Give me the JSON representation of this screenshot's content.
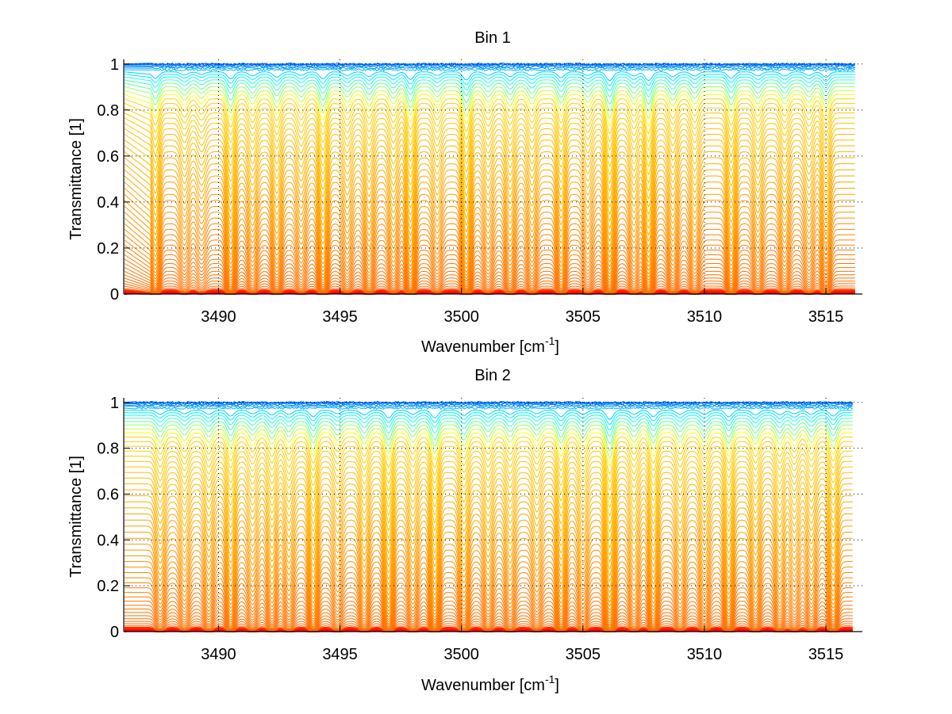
{
  "figure": {
    "colormap": [
      "#800000",
      "#ff0000",
      "#ff8000",
      "#ffff00",
      "#80ff80",
      "#00ffff",
      "#0080ff",
      "#0000ff"
    ],
    "grid_color": "#000000",
    "axis_color": "#000000"
  },
  "chart_data": [
    {
      "type": "line",
      "title": "Bin 1",
      "xlabel": "Wavenumber [cm",
      "xlabel_superscript": "-1",
      "xlabel_suffix": "]",
      "ylabel": "Transmittance [1]",
      "xlim": [
        3486.1,
        3516.5
      ],
      "ylim": [
        0,
        1.02
      ],
      "xticks": [
        3490,
        3495,
        3500,
        3505,
        3510,
        3515
      ],
      "xtick_labels": [
        "3490",
        "3495",
        "3500",
        "3505",
        "3510",
        "3515"
      ],
      "yticks": [
        0,
        0.2,
        0.4,
        0.6,
        0.8,
        1
      ],
      "ytick_labels": [
        "0",
        "0.2",
        "0.4",
        "0.6",
        "0.8",
        "1"
      ],
      "grid": true,
      "x_range": [
        3487.2,
        3516.2
      ],
      "series_count": 60,
      "series_baseline_range": [
        0.0,
        1.0
      ],
      "absorption_lines": [
        {
          "center": 3487.4,
          "depth": 0.55,
          "width": 0.14
        },
        {
          "center": 3488.6,
          "depth": 0.25,
          "width": 0.15
        },
        {
          "center": 3489.3,
          "depth": 0.2,
          "width": 0.15
        },
        {
          "center": 3490.5,
          "depth": 0.6,
          "width": 0.14
        },
        {
          "center": 3491.4,
          "depth": 0.35,
          "width": 0.15
        },
        {
          "center": 3492.4,
          "depth": 0.45,
          "width": 0.15
        },
        {
          "center": 3493.4,
          "depth": 0.3,
          "width": 0.15
        },
        {
          "center": 3494.3,
          "depth": 0.6,
          "width": 0.14
        },
        {
          "center": 3495.3,
          "depth": 0.3,
          "width": 0.15
        },
        {
          "center": 3496.2,
          "depth": 0.4,
          "width": 0.15
        },
        {
          "center": 3497.2,
          "depth": 0.35,
          "width": 0.15
        },
        {
          "center": 3497.9,
          "depth": 0.65,
          "width": 0.14
        },
        {
          "center": 3499.0,
          "depth": 0.3,
          "width": 0.15
        },
        {
          "center": 3500.2,
          "depth": 0.7,
          "width": 0.14
        },
        {
          "center": 3501.1,
          "depth": 0.3,
          "width": 0.15
        },
        {
          "center": 3502.0,
          "depth": 0.4,
          "width": 0.15
        },
        {
          "center": 3502.9,
          "depth": 0.35,
          "width": 0.15
        },
        {
          "center": 3504.1,
          "depth": 0.5,
          "width": 0.14
        },
        {
          "center": 3505.2,
          "depth": 0.3,
          "width": 0.15
        },
        {
          "center": 3506.1,
          "depth": 0.75,
          "width": 0.14
        },
        {
          "center": 3507.1,
          "depth": 0.35,
          "width": 0.15
        },
        {
          "center": 3507.7,
          "depth": 0.75,
          "width": 0.14
        },
        {
          "center": 3508.7,
          "depth": 0.4,
          "width": 0.15
        },
        {
          "center": 3509.6,
          "depth": 0.35,
          "width": 0.15
        },
        {
          "center": 3511.1,
          "depth": 0.55,
          "width": 0.14
        },
        {
          "center": 3512.2,
          "depth": 0.35,
          "width": 0.15
        },
        {
          "center": 3513.3,
          "depth": 0.35,
          "width": 0.15
        },
        {
          "center": 3514.3,
          "depth": 0.3,
          "width": 0.15
        },
        {
          "center": 3515.0,
          "depth": 0.45,
          "width": 0.14
        }
      ]
    },
    {
      "type": "line",
      "title": "Bin 2",
      "xlabel": "Wavenumber [cm",
      "xlabel_superscript": "-1",
      "xlabel_suffix": "]",
      "ylabel": "Transmittance [1]",
      "xlim": [
        3486.1,
        3516.5
      ],
      "ylim": [
        0,
        1.02
      ],
      "xticks": [
        3490,
        3495,
        3500,
        3505,
        3510,
        3515
      ],
      "xtick_labels": [
        "3490",
        "3495",
        "3500",
        "3505",
        "3510",
        "3515"
      ],
      "yticks": [
        0,
        0.2,
        0.4,
        0.6,
        0.8,
        1
      ],
      "ytick_labels": [
        "0",
        "0.2",
        "0.4",
        "0.6",
        "0.8",
        "1"
      ],
      "grid": true,
      "x_range": [
        3486.6,
        3516.1
      ],
      "series_count": 60,
      "series_baseline_range": [
        0.0,
        1.0
      ],
      "absorption_lines": [
        {
          "center": 3487.6,
          "depth": 0.35,
          "width": 0.15
        },
        {
          "center": 3488.6,
          "depth": 0.3,
          "width": 0.15
        },
        {
          "center": 3489.6,
          "depth": 0.35,
          "width": 0.15
        },
        {
          "center": 3490.5,
          "depth": 0.5,
          "width": 0.14
        },
        {
          "center": 3491.4,
          "depth": 0.3,
          "width": 0.15
        },
        {
          "center": 3492.2,
          "depth": 0.4,
          "width": 0.15
        },
        {
          "center": 3492.9,
          "depth": 0.35,
          "width": 0.15
        },
        {
          "center": 3493.9,
          "depth": 0.55,
          "width": 0.14
        },
        {
          "center": 3494.9,
          "depth": 0.3,
          "width": 0.15
        },
        {
          "center": 3496.0,
          "depth": 0.4,
          "width": 0.15
        },
        {
          "center": 3497.0,
          "depth": 0.65,
          "width": 0.14
        },
        {
          "center": 3498.0,
          "depth": 0.35,
          "width": 0.15
        },
        {
          "center": 3498.9,
          "depth": 0.65,
          "width": 0.14
        },
        {
          "center": 3500.1,
          "depth": 0.45,
          "width": 0.15
        },
        {
          "center": 3501.1,
          "depth": 0.35,
          "width": 0.15
        },
        {
          "center": 3502.0,
          "depth": 0.35,
          "width": 0.15
        },
        {
          "center": 3503.1,
          "depth": 0.3,
          "width": 0.15
        },
        {
          "center": 3504.1,
          "depth": 0.55,
          "width": 0.14
        },
        {
          "center": 3505.0,
          "depth": 0.35,
          "width": 0.15
        },
        {
          "center": 3506.1,
          "depth": 0.8,
          "width": 0.14
        },
        {
          "center": 3507.1,
          "depth": 0.35,
          "width": 0.15
        },
        {
          "center": 3507.9,
          "depth": 0.55,
          "width": 0.14
        },
        {
          "center": 3509.0,
          "depth": 0.35,
          "width": 0.15
        },
        {
          "center": 3510.0,
          "depth": 0.35,
          "width": 0.15
        },
        {
          "center": 3511.0,
          "depth": 0.55,
          "width": 0.14
        },
        {
          "center": 3512.1,
          "depth": 0.4,
          "width": 0.15
        },
        {
          "center": 3513.1,
          "depth": 0.4,
          "width": 0.15
        },
        {
          "center": 3513.7,
          "depth": 0.3,
          "width": 0.15
        },
        {
          "center": 3514.4,
          "depth": 0.35,
          "width": 0.15
        },
        {
          "center": 3515.3,
          "depth": 0.5,
          "width": 0.14
        }
      ]
    }
  ]
}
